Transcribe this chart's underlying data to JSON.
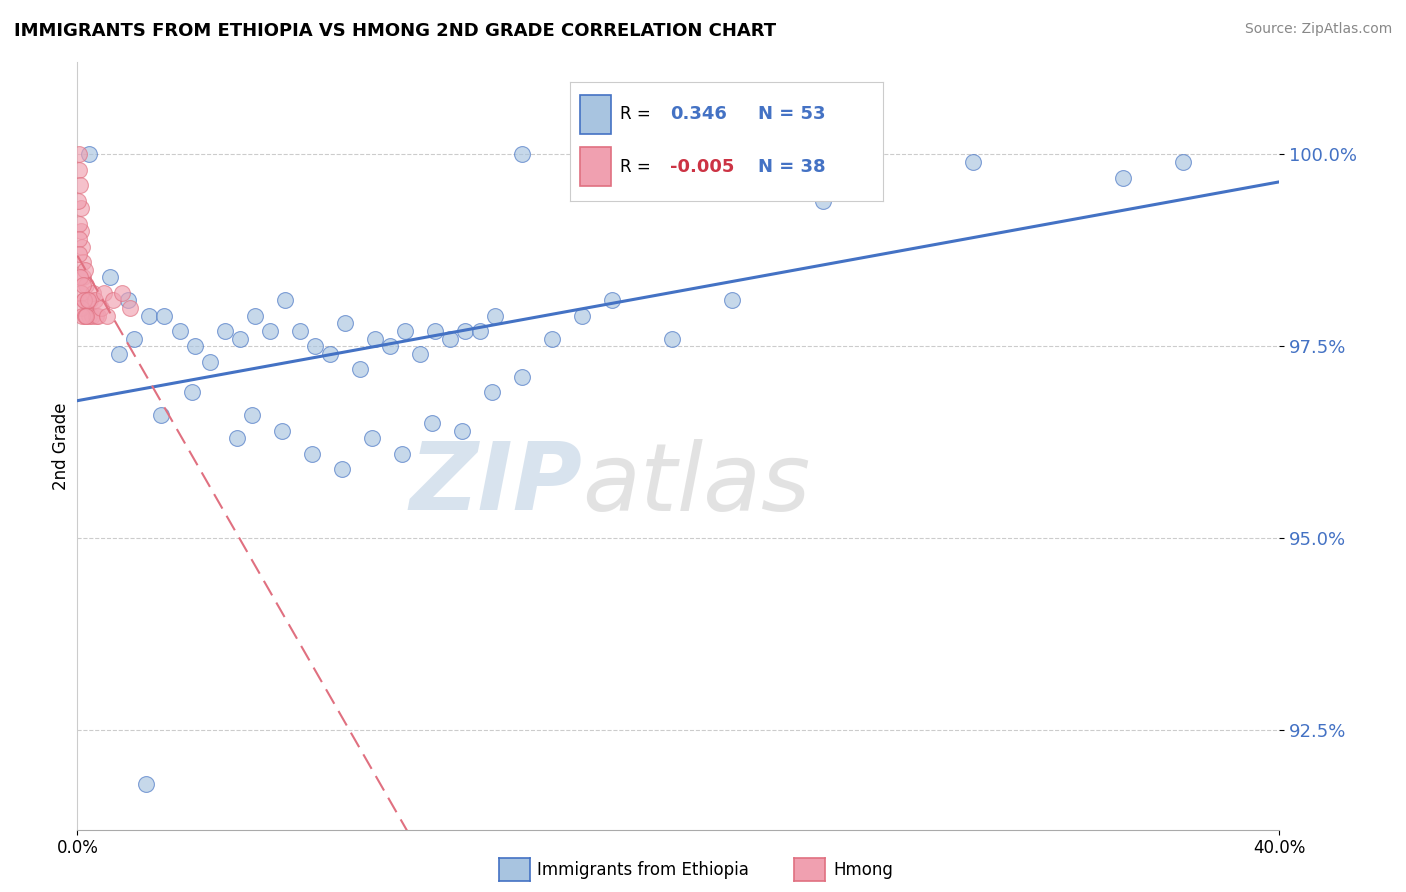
{
  "title": "IMMIGRANTS FROM ETHIOPIA VS HMONG 2ND GRADE CORRELATION CHART",
  "source": "Source: ZipAtlas.com",
  "ylabel": "2nd Grade",
  "yticks": [
    92.5,
    95.0,
    97.5,
    100.0
  ],
  "ytick_labels": [
    "92.5%",
    "95.0%",
    "97.5%",
    "100.0%"
  ],
  "xlim": [
    0.0,
    40.0
  ],
  "ylim": [
    91.2,
    101.2
  ],
  "legend_ethiopia_R": "0.346",
  "legend_ethiopia_N": "53",
  "legend_hmong_R": "-0.005",
  "legend_hmong_N": "38",
  "legend_label_ethiopia": "Immigrants from Ethiopia",
  "legend_label_hmong": "Hmong",
  "color_ethiopia": "#a8c4e0",
  "color_hmong": "#f0a0b0",
  "color_ethiopia_line": "#4472c4",
  "color_hmong_line": "#e07080",
  "color_text_blue": "#4472c4",
  "color_text_red": "#cc3344",
  "watermark_zip": "ZIP",
  "watermark_atlas": "atlas",
  "background_color": "#ffffff",
  "ethiopia_x": [
    0.4,
    14.8,
    1.1,
    1.7,
    2.4,
    2.9,
    1.9,
    1.4,
    3.4,
    3.9,
    4.9,
    4.4,
    5.9,
    5.4,
    6.9,
    6.4,
    7.9,
    7.4,
    8.9,
    8.4,
    9.9,
    9.4,
    10.9,
    10.4,
    11.9,
    11.4,
    12.9,
    12.4,
    13.9,
    13.4,
    2.8,
    3.8,
    5.3,
    5.8,
    6.8,
    7.8,
    8.8,
    9.8,
    10.8,
    11.8,
    12.8,
    13.8,
    14.8,
    15.8,
    16.8,
    17.8,
    19.8,
    21.8,
    24.8,
    29.8,
    34.8,
    36.8,
    2.3
  ],
  "ethiopia_y": [
    100.0,
    100.0,
    98.4,
    98.1,
    97.9,
    97.9,
    97.6,
    97.4,
    97.7,
    97.5,
    97.7,
    97.3,
    97.9,
    97.6,
    98.1,
    97.7,
    97.5,
    97.7,
    97.8,
    97.4,
    97.6,
    97.2,
    97.7,
    97.5,
    97.7,
    97.4,
    97.7,
    97.6,
    97.9,
    97.7,
    96.6,
    96.9,
    96.3,
    96.6,
    96.4,
    96.1,
    95.9,
    96.3,
    96.1,
    96.5,
    96.4,
    96.9,
    97.1,
    97.6,
    97.9,
    98.1,
    97.6,
    98.1,
    99.4,
    99.9,
    99.7,
    99.9,
    91.8
  ],
  "hmong_x": [
    0.05,
    0.07,
    0.09,
    0.11,
    0.13,
    0.16,
    0.18,
    0.2,
    0.23,
    0.26,
    0.28,
    0.33,
    0.38,
    0.43,
    0.48,
    0.53,
    0.58,
    0.63,
    0.68,
    0.78,
    0.88,
    0.98,
    1.18,
    1.48,
    0.03,
    0.04,
    0.06,
    0.07,
    0.09,
    0.11,
    0.13,
    0.15,
    0.18,
    0.22,
    0.26,
    0.3,
    0.36,
    1.75
  ],
  "hmong_y": [
    100.0,
    99.8,
    99.6,
    99.3,
    99.0,
    98.8,
    98.6,
    98.4,
    98.1,
    98.5,
    98.3,
    98.1,
    97.9,
    98.1,
    97.9,
    98.2,
    98.1,
    97.9,
    97.9,
    98.0,
    98.2,
    97.9,
    98.1,
    98.2,
    99.4,
    99.1,
    98.9,
    98.7,
    98.4,
    98.2,
    98.0,
    97.9,
    98.3,
    98.1,
    97.9,
    97.9,
    98.1,
    98.0
  ]
}
